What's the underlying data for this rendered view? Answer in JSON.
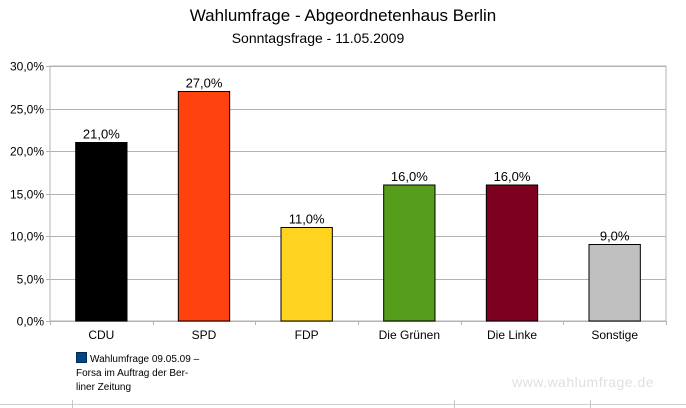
{
  "chart_data": {
    "type": "bar",
    "title": "Wahlumfrage - Abgeordnetenhaus Berlin",
    "subtitle": "Sonntagsfrage - 11.05.2009",
    "categories": [
      "CDU",
      "SPD",
      "FDP",
      "Die Grünen",
      "Die Linke",
      "Sonstige"
    ],
    "values": [
      21.0,
      27.0,
      11.0,
      16.0,
      16.0,
      9.0
    ],
    "value_labels": [
      "21,0%",
      "27,0%",
      "11,0%",
      "16,0%",
      "16,0%",
      "9,0%"
    ],
    "colors": [
      "#000000",
      "#ff420e",
      "#ffd320",
      "#579d1c",
      "#7e0021",
      "#c0c0c0"
    ],
    "ylim": [
      0,
      30
    ],
    "yticks": [
      0,
      5,
      10,
      15,
      20,
      25,
      30
    ],
    "ytick_labels": [
      "0,0%",
      "5,0%",
      "10,0%",
      "15,0%",
      "20,0%",
      "25,0%",
      "30,0%"
    ],
    "xlabel": "",
    "ylabel": "",
    "grid": true,
    "legend_position": "bottom-left",
    "legend_color": "#004586",
    "legend": "Wahlumfrage 09.05.09 –\nForsa im Auftrag der Ber-\nliner Zeitung"
  },
  "watermark": "www.wahlumfrage.de"
}
